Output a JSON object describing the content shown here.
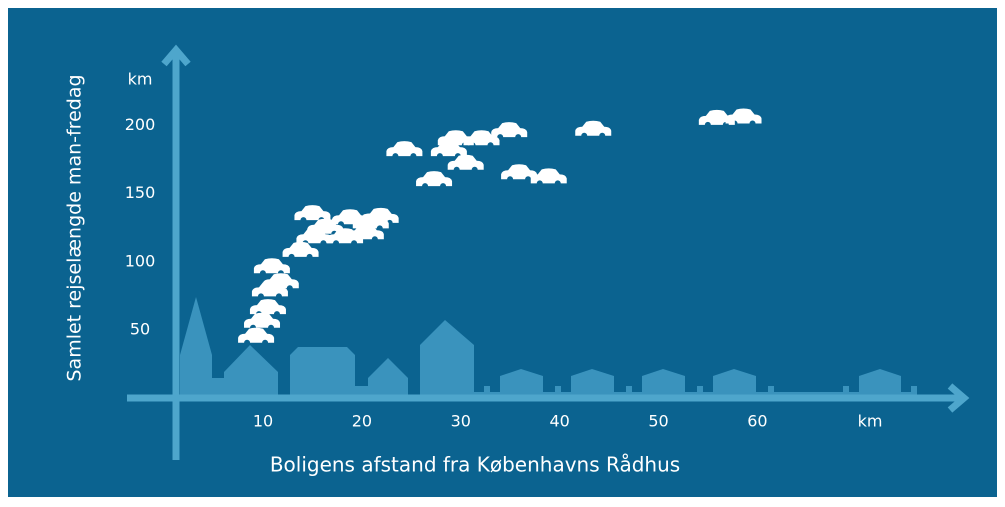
{
  "chart_data": {
    "type": "scatter",
    "y_label": "Samlet  rejselængde man-fredag",
    "y_unit": "km",
    "x_label": "Boligens afstand fra Københavns Rådhus",
    "x_unit": "km",
    "color": "#ffffff",
    "x": [
      9.3,
      9.9,
      10.5,
      10.7,
      11.8,
      10.9,
      13.8,
      15.2,
      15.0,
      16.3,
      18.3,
      18.8,
      20.4,
      20.9,
      21.9,
      24.3,
      27.3,
      28.8,
      29.5,
      30.5,
      32.1,
      34.9,
      35.9,
      38.9,
      43.4,
      55.9,
      58.6
    ],
    "values": [
      45,
      56,
      66,
      79,
      85,
      96,
      108,
      118,
      135,
      125,
      118,
      132,
      121,
      129,
      133,
      182,
      160,
      182,
      190,
      172,
      190,
      196,
      165,
      162,
      197,
      205,
      206
    ],
    "xlim": [
      1.2,
      81
    ],
    "ylim": [
      0,
      257
    ],
    "xticks": [
      10,
      20,
      30,
      40,
      50,
      60
    ],
    "yticks": [
      50,
      100,
      150,
      200
    ]
  }
}
